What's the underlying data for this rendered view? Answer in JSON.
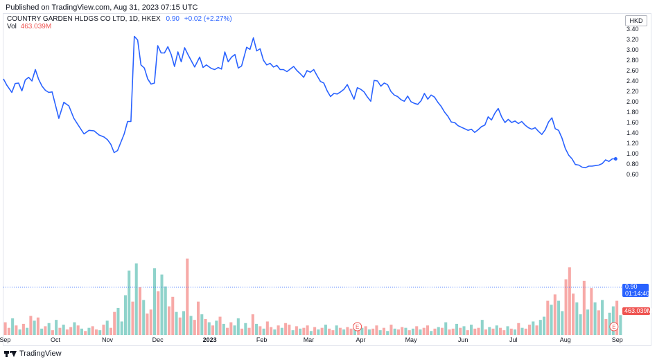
{
  "header": {
    "published": "Published on TradingView.com, Aug 31, 2023 07:15 UTC"
  },
  "legend": {
    "symbol": "COUNTRY GARDEN HLDGS CO LTD, 1D, HKEX",
    "price": "0.90",
    "change": "+0.02 (+2.27%)",
    "volume_label": "Vol",
    "volume_value": "463.039M"
  },
  "axis": {
    "currency": "HKD"
  },
  "tags": {
    "price": "0.90",
    "countdown": "01:14:40",
    "volume": "463.039M"
  },
  "footer": {
    "brand": "TradingView"
  },
  "colors": {
    "line": "#2962ff",
    "vol_up": "#26a69a",
    "vol_down": "#ef5350",
    "earnings": "#ef5350"
  },
  "chart_data": {
    "type": "line",
    "title": "COUNTRY GARDEN HLDGS CO LTD, 1D, HKEX",
    "ylim": [
      0.55,
      3.45
    ],
    "yticks": [
      "3.40",
      "3.20",
      "3.00",
      "2.80",
      "2.60",
      "2.40",
      "2.20",
      "2.00",
      "1.80",
      "1.60",
      "1.40",
      "1.20",
      "1.00",
      "0.80",
      "0.60"
    ],
    "xticks": [
      {
        "label": "Sep",
        "date": "2022-09-01"
      },
      {
        "label": "Oct",
        "date": "2022-10-01"
      },
      {
        "label": "Nov",
        "date": "2022-11-01"
      },
      {
        "label": "Dec",
        "date": "2022-12-01"
      },
      {
        "label": "2023",
        "date": "2023-01-01"
      },
      {
        "label": "Feb",
        "date": "2023-02-01"
      },
      {
        "label": "Mar",
        "date": "2023-03-01"
      },
      {
        "label": "Apr",
        "date": "2023-04-01"
      },
      {
        "label": "May",
        "date": "2023-05-01"
      },
      {
        "label": "Jun",
        "date": "2023-06-01"
      },
      {
        "label": "Jul",
        "date": "2023-07-01"
      },
      {
        "label": "Aug",
        "date": "2023-08-01"
      },
      {
        "label": "Sep",
        "date": "2023-09-01"
      }
    ],
    "last_price": 0.9,
    "series": [
      {
        "values": [
          [
            "2022-08-31",
            2.44
          ],
          [
            "2022-09-02",
            2.32
          ],
          [
            "2022-09-05",
            2.18
          ],
          [
            "2022-09-07",
            2.35
          ],
          [
            "2022-09-09",
            2.36
          ],
          [
            "2022-09-11",
            2.21
          ],
          [
            "2022-09-13",
            2.42
          ],
          [
            "2022-09-15",
            2.47
          ],
          [
            "2022-09-17",
            2.4
          ],
          [
            "2022-09-19",
            2.62
          ],
          [
            "2022-09-21",
            2.43
          ],
          [
            "2022-09-23",
            2.3
          ],
          [
            "2022-09-25",
            2.22
          ],
          [
            "2022-09-27",
            2.18
          ],
          [
            "2022-09-29",
            2.19
          ],
          [
            "2022-10-03",
            1.68
          ],
          [
            "2022-10-06",
            1.99
          ],
          [
            "2022-10-09",
            1.92
          ],
          [
            "2022-10-12",
            1.68
          ],
          [
            "2022-10-15",
            1.53
          ],
          [
            "2022-10-18",
            1.38
          ],
          [
            "2022-10-21",
            1.45
          ],
          [
            "2022-10-24",
            1.44
          ],
          [
            "2022-10-27",
            1.36
          ],
          [
            "2022-10-30",
            1.32
          ],
          [
            "2022-11-01",
            1.27
          ],
          [
            "2022-11-03",
            1.18
          ],
          [
            "2022-11-05",
            1.02
          ],
          [
            "2022-11-07",
            1.06
          ],
          [
            "2022-11-09",
            1.22
          ],
          [
            "2022-11-11",
            1.38
          ],
          [
            "2022-11-13",
            1.62
          ],
          [
            "2022-11-15",
            1.62
          ],
          [
            "2022-11-17",
            3.26
          ],
          [
            "2022-11-19",
            3.19
          ],
          [
            "2022-11-21",
            2.71
          ],
          [
            "2022-11-23",
            2.65
          ],
          [
            "2022-11-25",
            2.44
          ],
          [
            "2022-11-27",
            2.34
          ],
          [
            "2022-11-29",
            2.36
          ],
          [
            "2022-12-01",
            3.08
          ],
          [
            "2022-12-03",
            2.94
          ],
          [
            "2022-12-05",
            2.94
          ],
          [
            "2022-12-07",
            3.06
          ],
          [
            "2022-12-09",
            2.91
          ],
          [
            "2022-12-11",
            2.68
          ],
          [
            "2022-12-13",
            2.96
          ],
          [
            "2022-12-15",
            2.77
          ],
          [
            "2022-12-17",
            3.04
          ],
          [
            "2022-12-19",
            2.91
          ],
          [
            "2022-12-21",
            2.79
          ],
          [
            "2022-12-23",
            2.67
          ],
          [
            "2022-12-26",
            2.86
          ],
          [
            "2022-12-28",
            2.66
          ],
          [
            "2022-12-30",
            2.71
          ],
          [
            "2023-01-02",
            2.64
          ],
          [
            "2023-01-04",
            2.62
          ],
          [
            "2023-01-06",
            2.66
          ],
          [
            "2023-01-08",
            2.63
          ],
          [
            "2023-01-10",
            2.96
          ],
          [
            "2023-01-12",
            2.77
          ],
          [
            "2023-01-14",
            2.86
          ],
          [
            "2023-01-16",
            2.91
          ],
          [
            "2023-01-18",
            2.65
          ],
          [
            "2023-01-20",
            2.69
          ],
          [
            "2023-01-23",
            3.05
          ],
          [
            "2023-01-25",
            3.01
          ],
          [
            "2023-01-27",
            3.23
          ],
          [
            "2023-01-29",
            2.98
          ],
          [
            "2023-01-31",
            3.02
          ],
          [
            "2023-02-02",
            2.8
          ],
          [
            "2023-02-04",
            2.71
          ],
          [
            "2023-02-06",
            2.74
          ],
          [
            "2023-02-08",
            2.67
          ],
          [
            "2023-02-10",
            2.7
          ],
          [
            "2023-02-12",
            2.62
          ],
          [
            "2023-02-14",
            2.62
          ],
          [
            "2023-02-16",
            2.58
          ],
          [
            "2023-02-18",
            2.63
          ],
          [
            "2023-02-20",
            2.68
          ],
          [
            "2023-02-22",
            2.6
          ],
          [
            "2023-02-24",
            2.54
          ],
          [
            "2023-02-26",
            2.47
          ],
          [
            "2023-02-28",
            2.6
          ],
          [
            "2023-03-02",
            2.57
          ],
          [
            "2023-03-04",
            2.62
          ],
          [
            "2023-03-06",
            2.5
          ],
          [
            "2023-03-08",
            2.39
          ],
          [
            "2023-03-10",
            2.36
          ],
          [
            "2023-03-12",
            2.21
          ],
          [
            "2023-03-14",
            2.1
          ],
          [
            "2023-03-16",
            2.16
          ],
          [
            "2023-03-18",
            2.15
          ],
          [
            "2023-03-20",
            2.19
          ],
          [
            "2023-03-22",
            2.24
          ],
          [
            "2023-03-24",
            2.33
          ],
          [
            "2023-03-26",
            2.19
          ],
          [
            "2023-03-28",
            2.05
          ],
          [
            "2023-03-30",
            2.27
          ],
          [
            "2023-04-01",
            2.24
          ],
          [
            "2023-04-03",
            2.19
          ],
          [
            "2023-04-05",
            2.09
          ],
          [
            "2023-04-07",
            2.01
          ],
          [
            "2023-04-09",
            2.41
          ],
          [
            "2023-04-11",
            2.4
          ],
          [
            "2023-04-13",
            2.3
          ],
          [
            "2023-04-15",
            2.36
          ],
          [
            "2023-04-17",
            2.33
          ],
          [
            "2023-04-19",
            2.2
          ],
          [
            "2023-04-21",
            2.13
          ],
          [
            "2023-04-23",
            2.1
          ],
          [
            "2023-04-25",
            2.04
          ],
          [
            "2023-04-27",
            2.01
          ],
          [
            "2023-04-29",
            2.11
          ],
          [
            "2023-05-01",
            2.0
          ],
          [
            "2023-05-03",
            1.97
          ],
          [
            "2023-05-05",
            1.95
          ],
          [
            "2023-05-07",
            2.02
          ],
          [
            "2023-05-09",
            2.16
          ],
          [
            "2023-05-11",
            2.05
          ],
          [
            "2023-05-13",
            2.13
          ],
          [
            "2023-05-15",
            2.09
          ],
          [
            "2023-05-17",
            1.99
          ],
          [
            "2023-05-19",
            1.91
          ],
          [
            "2023-05-21",
            1.8
          ],
          [
            "2023-05-23",
            1.72
          ],
          [
            "2023-05-25",
            1.61
          ],
          [
            "2023-05-27",
            1.6
          ],
          [
            "2023-05-29",
            1.54
          ],
          [
            "2023-05-31",
            1.51
          ],
          [
            "2023-06-02",
            1.48
          ],
          [
            "2023-06-04",
            1.45
          ],
          [
            "2023-06-06",
            1.47
          ],
          [
            "2023-06-08",
            1.41
          ],
          [
            "2023-06-10",
            1.46
          ],
          [
            "2023-06-12",
            1.52
          ],
          [
            "2023-06-14",
            1.55
          ],
          [
            "2023-06-16",
            1.71
          ],
          [
            "2023-06-18",
            1.65
          ],
          [
            "2023-06-20",
            1.78
          ],
          [
            "2023-06-22",
            1.87
          ],
          [
            "2023-06-24",
            1.71
          ],
          [
            "2023-06-26",
            1.6
          ],
          [
            "2023-06-28",
            1.66
          ],
          [
            "2023-06-30",
            1.6
          ],
          [
            "2023-07-02",
            1.63
          ],
          [
            "2023-07-04",
            1.58
          ],
          [
            "2023-07-06",
            1.62
          ],
          [
            "2023-07-08",
            1.55
          ],
          [
            "2023-07-10",
            1.5
          ],
          [
            "2023-07-12",
            1.47
          ],
          [
            "2023-07-14",
            1.5
          ],
          [
            "2023-07-16",
            1.43
          ],
          [
            "2023-07-18",
            1.37
          ],
          [
            "2023-07-20",
            1.46
          ],
          [
            "2023-07-22",
            1.61
          ],
          [
            "2023-07-24",
            1.69
          ],
          [
            "2023-07-26",
            1.48
          ],
          [
            "2023-07-28",
            1.45
          ],
          [
            "2023-07-30",
            1.3
          ],
          [
            "2023-08-01",
            1.1
          ],
          [
            "2023-08-03",
            0.97
          ],
          [
            "2023-08-05",
            0.9
          ],
          [
            "2023-08-07",
            0.79
          ],
          [
            "2023-08-09",
            0.78
          ],
          [
            "2023-08-11",
            0.74
          ],
          [
            "2023-08-13",
            0.73
          ],
          [
            "2023-08-15",
            0.76
          ],
          [
            "2023-08-17",
            0.76
          ],
          [
            "2023-08-19",
            0.77
          ],
          [
            "2023-08-21",
            0.78
          ],
          [
            "2023-08-23",
            0.81
          ],
          [
            "2023-08-25",
            0.88
          ],
          [
            "2023-08-27",
            0.85
          ],
          [
            "2023-08-29",
            0.9
          ],
          [
            "2023-08-31",
            0.9
          ]
        ]
      }
    ],
    "volume": {
      "last": "463.039M",
      "bars": [
        1.6,
        0.9,
        2.1,
        1.2,
        0.7,
        1.4,
        0.9,
        2.4,
        1.8,
        2.2,
        0.8,
        1.1,
        1.5,
        0.6,
        1.9,
        0.9,
        1.3,
        0.7,
        1.0,
        1.6,
        1.2,
        0.8,
        0.5,
        0.9,
        1.1,
        0.7,
        0.6,
        1.3,
        1.8,
        0.9,
        2.9,
        3.4,
        1.7,
        5.0,
        8.1,
        4.2,
        9.0,
        6.0,
        4.4,
        2.7,
        3.2,
        8.4,
        5.5,
        7.6,
        6.1,
        3.6,
        4.8,
        2.9,
        2.2,
        3.0,
        9.6,
        2.4,
        1.9,
        4.2,
        2.6,
        2.0,
        1.6,
        1.2,
        1.8,
        2.3,
        1.4,
        0.9,
        1.6,
        1.2,
        2.1,
        0.8,
        1.5,
        0.9,
        2.6,
        1.4,
        1.1,
        0.8,
        1.7,
        1.0,
        0.7,
        1.2,
        0.9,
        1.5,
        1.3,
        0.6,
        1.1,
        0.8,
        0.9,
        1.2,
        0.5,
        1.0,
        0.7,
        0.9,
        1.3,
        0.8,
        0.6,
        1.2,
        0.9,
        0.7,
        1.0,
        0.8,
        1.4,
        0.6,
        0.9,
        1.1,
        0.7,
        0.8,
        1.2,
        0.6,
        0.9,
        0.5,
        1.3,
        0.8,
        0.7,
        1.0,
        0.9,
        0.6,
        0.8,
        1.1,
        0.7,
        0.9,
        1.2,
        0.5,
        0.8,
        1.0,
        0.9,
        1.6,
        0.7,
        0.8,
        1.4,
        0.9,
        1.1,
        0.6,
        1.3,
        0.8,
        0.9,
        1.9,
        0.7,
        1.0,
        0.8,
        1.2,
        0.9,
        0.6,
        1.1,
        0.8,
        0.7,
        1.5,
        0.9,
        0.8,
        1.3,
        1.7,
        1.2,
        1.9,
        2.3,
        4.3,
        3.8,
        5.1,
        4.3,
        3.0,
        7.0,
        8.5,
        5.2,
        4.1,
        2.6,
        6.8,
        3.2,
        5.9,
        4.1,
        3.1,
        4.4,
        2.0,
        2.8,
        3.6,
        4.3,
        2.5
      ],
      "down": [
        1,
        1,
        0,
        1,
        0,
        1,
        0,
        1,
        0,
        1,
        0,
        1,
        0,
        1,
        0,
        1,
        0,
        1,
        1,
        0,
        1,
        0,
        1,
        0,
        1,
        1,
        0,
        1,
        0,
        1,
        1,
        0,
        0,
        0,
        0,
        1,
        0,
        1,
        0,
        1,
        1,
        0,
        1,
        0,
        0,
        1,
        1,
        0,
        1,
        0,
        1,
        0,
        1,
        1,
        0,
        1,
        0,
        1,
        0,
        1,
        0,
        1,
        1,
        0,
        0,
        1,
        0,
        1,
        1,
        0,
        1,
        0,
        1,
        1,
        0,
        1,
        0,
        1,
        1,
        0,
        1,
        0,
        1,
        1,
        0,
        1,
        0,
        1,
        0,
        1,
        1,
        0,
        1,
        0,
        1,
        1,
        0,
        1,
        0,
        1,
        0,
        1,
        1,
        0,
        1,
        0,
        1,
        0,
        1,
        1,
        0,
        1,
        0,
        1,
        0,
        1,
        1,
        0,
        1,
        0,
        1,
        0,
        1,
        1,
        0,
        1,
        0,
        1,
        0,
        1,
        1,
        0,
        1,
        0,
        1,
        0,
        1,
        1,
        0,
        1,
        0,
        1,
        0,
        1,
        1,
        0,
        1,
        0,
        0,
        1,
        0,
        1,
        0,
        0,
        1,
        1,
        1,
        0,
        0,
        1,
        0,
        1,
        0,
        1,
        0,
        1,
        0,
        0,
        1,
        0
      ]
    },
    "earnings_markers": [
      {
        "label": "E",
        "date": "2023-03-30"
      },
      {
        "label": "E",
        "date": "2023-08-30"
      }
    ]
  }
}
